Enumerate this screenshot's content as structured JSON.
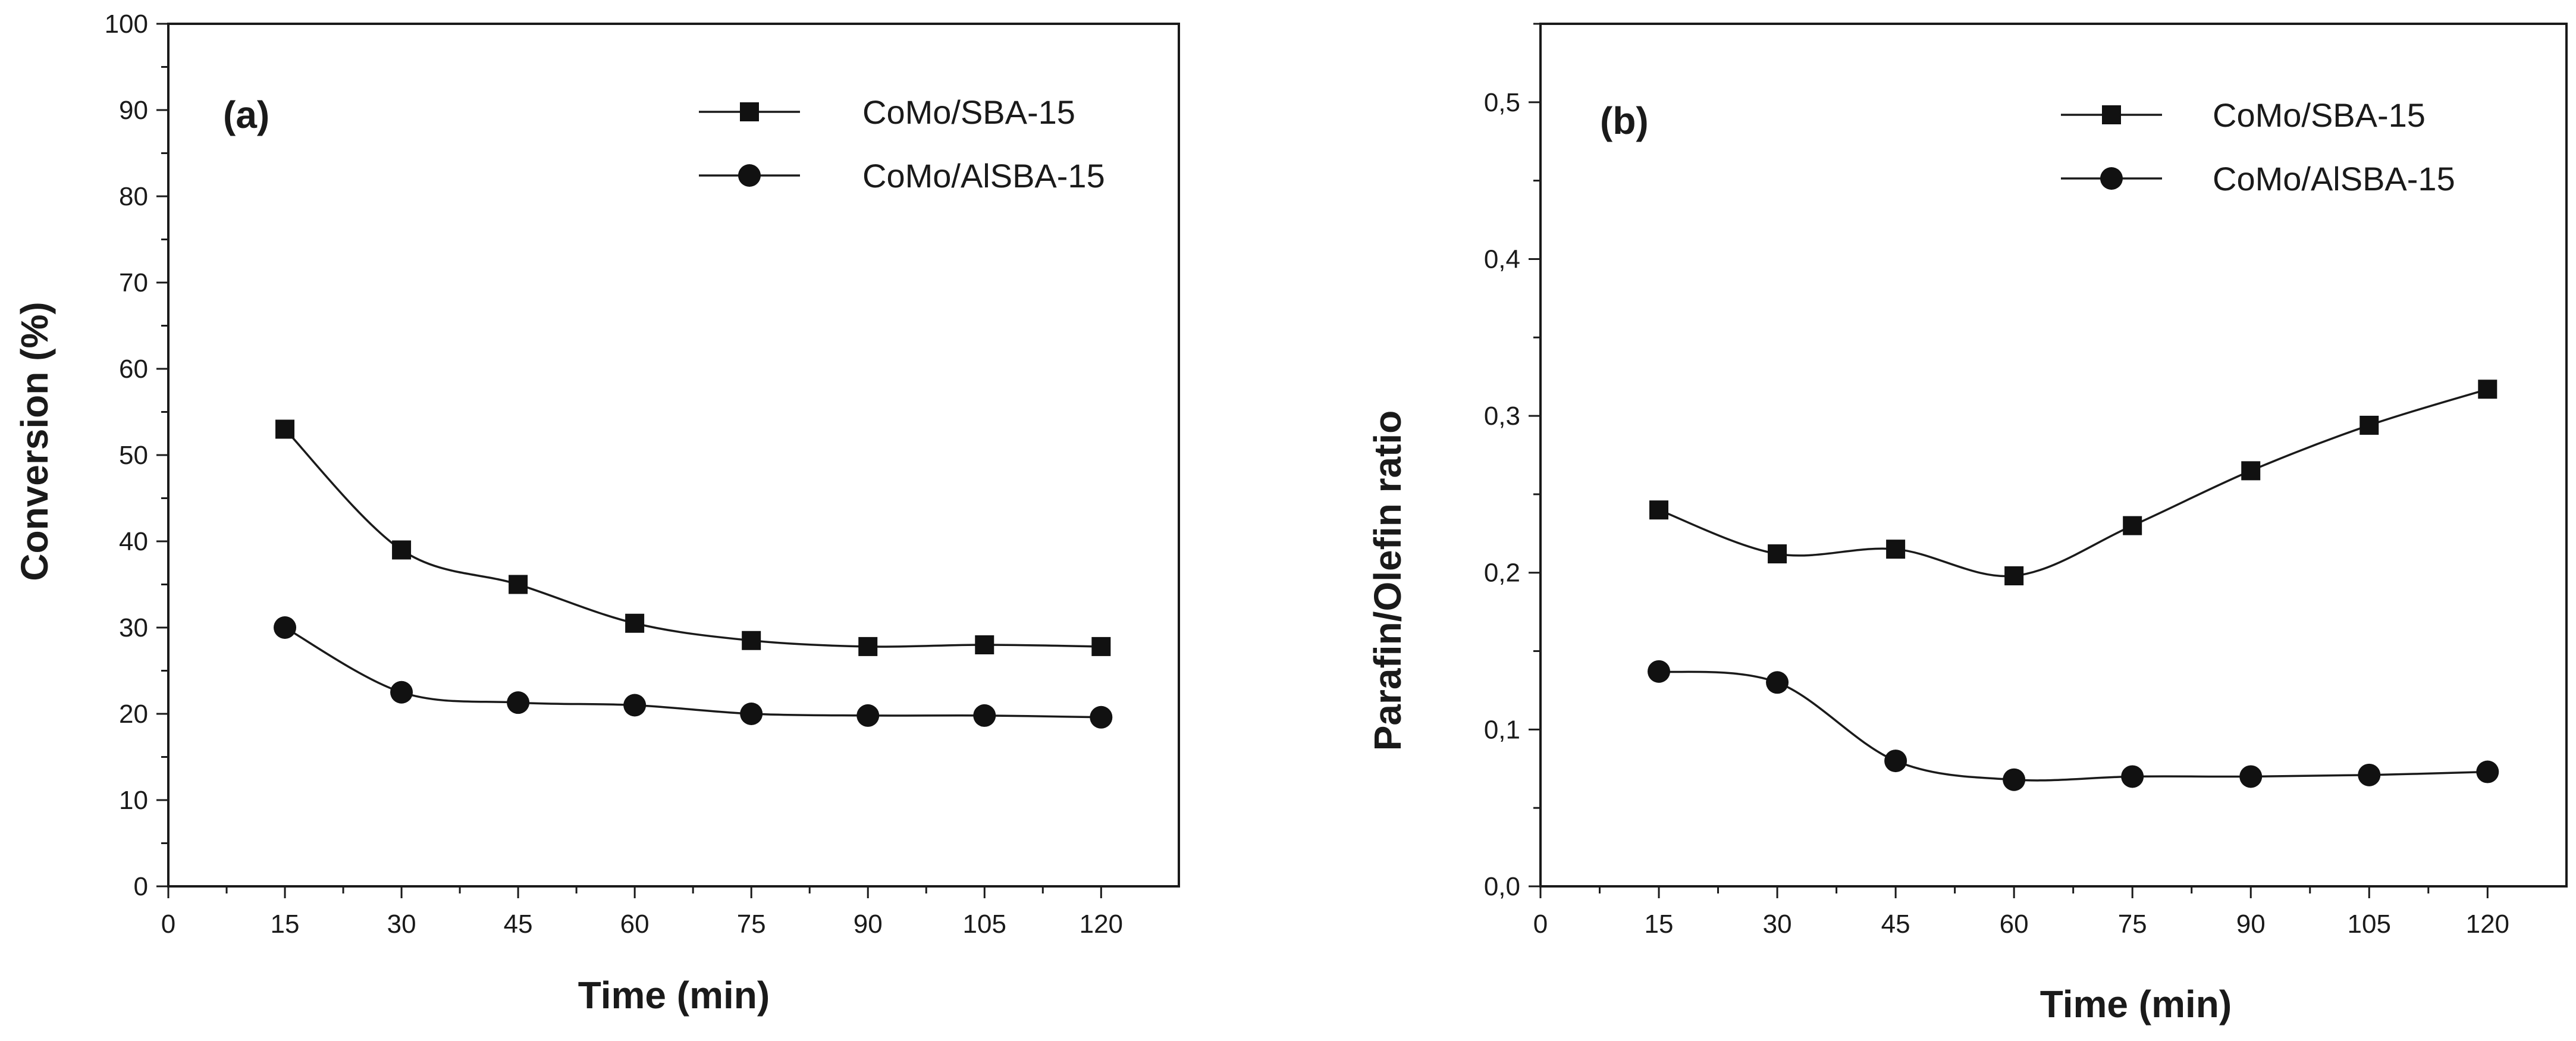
{
  "chart_data": [
    {
      "type": "line",
      "panel_label": "(a)",
      "xlabel": "Time (min)",
      "ylabel": "Conversion (%)",
      "xlim": [
        0,
        130
      ],
      "ylim": [
        0,
        100
      ],
      "xticks": [
        0,
        15,
        30,
        45,
        60,
        75,
        90,
        105,
        120
      ],
      "xtick_labels": [
        "0",
        "15",
        "30",
        "45",
        "60",
        "75",
        "90",
        "105",
        "120"
      ],
      "yticks": [
        0,
        10,
        20,
        30,
        40,
        50,
        60,
        70,
        80,
        90,
        100
      ],
      "ytick_labels": [
        "0",
        "10",
        "20",
        "30",
        "40",
        "50",
        "60",
        "70",
        "80",
        "90",
        "100"
      ],
      "legend_position": "top-right",
      "series": [
        {
          "name": "CoMo/SBA-15",
          "marker": "square",
          "x": [
            15,
            30,
            45,
            60,
            75,
            90,
            105,
            120
          ],
          "values": [
            53,
            39,
            35,
            30.5,
            28.5,
            27.8,
            28,
            27.8
          ]
        },
        {
          "name": "CoMo/AlSBA-15",
          "marker": "circle",
          "x": [
            15,
            30,
            45,
            60,
            75,
            90,
            105,
            120
          ],
          "values": [
            30,
            22.5,
            21.3,
            21,
            20,
            19.8,
            19.8,
            19.6
          ]
        }
      ]
    },
    {
      "type": "line",
      "panel_label": "(b)",
      "xlabel": "Time (min)",
      "ylabel": "Parafin/Olefin ratio",
      "xlim": [
        0,
        130
      ],
      "ylim": [
        0,
        0.55
      ],
      "xticks": [
        0,
        15,
        30,
        45,
        60,
        75,
        90,
        105,
        120
      ],
      "xtick_labels": [
        "0",
        "15",
        "30",
        "45",
        "60",
        "75",
        "90",
        "105",
        "120"
      ],
      "yticks": [
        0,
        0.1,
        0.2,
        0.3,
        0.4,
        0.5
      ],
      "ytick_labels": [
        "0,0",
        "0,1",
        "0,2",
        "0,3",
        "0,4",
        "0,5"
      ],
      "legend_position": "top-right",
      "series": [
        {
          "name": "CoMo/SBA-15",
          "marker": "square",
          "x": [
            15,
            30,
            45,
            60,
            75,
            90,
            105,
            120
          ],
          "values": [
            0.24,
            0.212,
            0.215,
            0.198,
            0.23,
            0.265,
            0.294,
            0.317
          ]
        },
        {
          "name": "CoMo/AlSBA-15",
          "marker": "circle",
          "x": [
            15,
            30,
            45,
            60,
            75,
            90,
            105,
            120
          ],
          "values": [
            0.137,
            0.13,
            0.08,
            0.068,
            0.07,
            0.07,
            0.071,
            0.073
          ]
        }
      ]
    }
  ]
}
